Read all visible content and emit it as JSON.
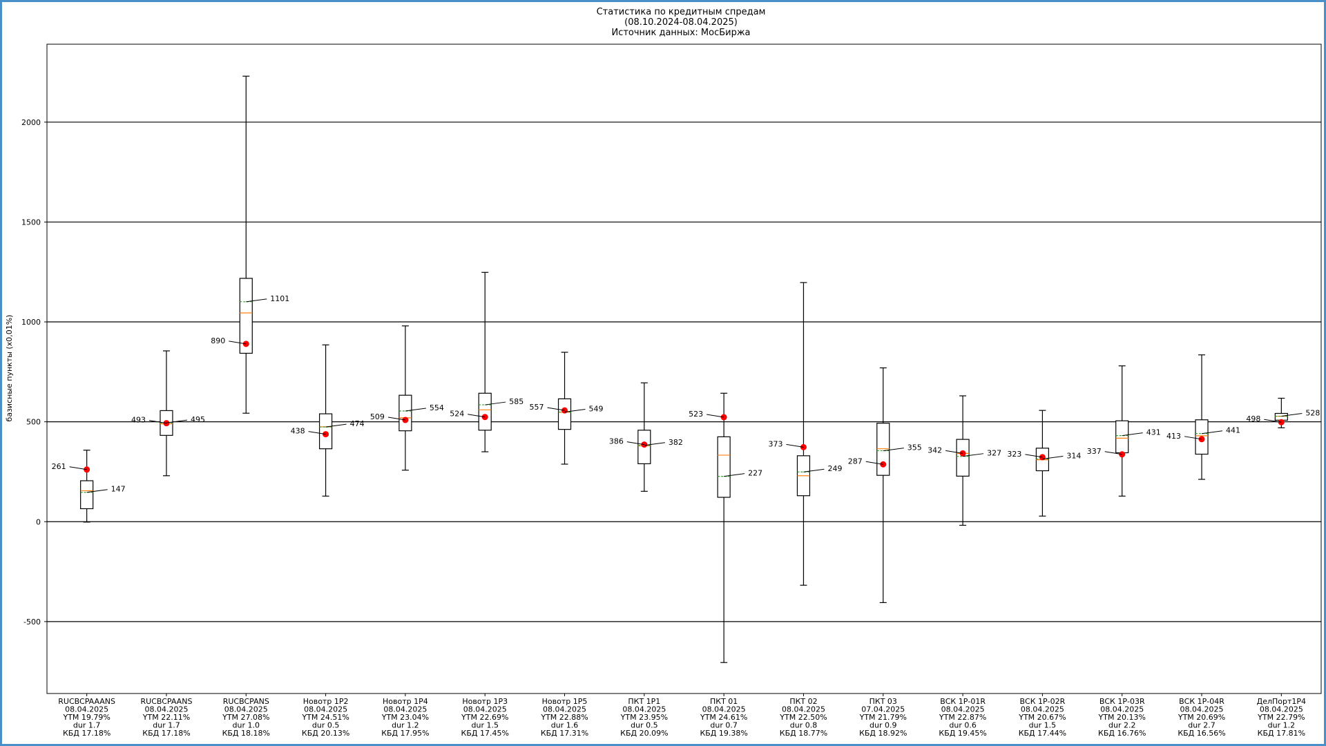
{
  "chart_data": {
    "type": "box",
    "title_lines": [
      "Статистика по кредитным спредам",
      "(08.10.2024-08.04.2025)",
      "Источник данных: МосБиржа"
    ],
    "xlabel": "",
    "ylabel": "базисные пункты (х0,01%)",
    "ylim": [
      -860,
      2390
    ],
    "yticks": [
      -500,
      0,
      500,
      1000,
      1500,
      2000
    ],
    "grid": "horizontal",
    "colors": {
      "box": "#000000",
      "median": "#ff7f0e",
      "mean": "#2ca02c",
      "current_point": "#ff0000",
      "grid": "#000000",
      "border": "#4a90c8"
    },
    "series": [
      {
        "label_lines": [
          "RUCBCPAAANS",
          "08.04.2025",
          "YTM 19.79%",
          "dur 1.7",
          "КБД 17.18%"
        ],
        "whisker_low": -2,
        "q1": 65,
        "median": 155,
        "q3": 205,
        "whisker_high": 358,
        "mean": 147,
        "current": 261,
        "mean_label": "147",
        "current_label": "261"
      },
      {
        "label_lines": [
          "RUCBCPAANS",
          "08.04.2025",
          "YTM 22.11%",
          "dur 1.7",
          "КБД 17.18%"
        ],
        "whisker_low": 230,
        "q1": 432,
        "median": 490,
        "q3": 556,
        "whisker_high": 855,
        "mean": 495,
        "current": 493,
        "mean_label": "495",
        "current_label": "493"
      },
      {
        "label_lines": [
          "RUCBCPANS",
          "08.04.2025",
          "YTM 27.08%",
          "dur 1.0",
          "КБД 18.18%"
        ],
        "whisker_low": 543,
        "q1": 843,
        "median": 1045,
        "q3": 1218,
        "whisker_high": 2230,
        "mean": 1101,
        "current": 890,
        "mean_label": "1101",
        "current_label": "890"
      },
      {
        "label_lines": [
          "Новотр 1Р2",
          "08.04.2025",
          "YTM 24.51%",
          "dur 0.5",
          "КБД 20.13%"
        ],
        "whisker_low": 128,
        "q1": 365,
        "median": 475,
        "q3": 540,
        "whisker_high": 885,
        "mean": 474,
        "current": 438,
        "mean_label": "474",
        "current_label": "438"
      },
      {
        "label_lines": [
          "Новотр 1Р4",
          "08.04.2025",
          "YTM 23.04%",
          "dur 1.2",
          "КБД 17.95%"
        ],
        "whisker_low": 258,
        "q1": 455,
        "median": 520,
        "q3": 633,
        "whisker_high": 980,
        "mean": 554,
        "current": 509,
        "mean_label": "554",
        "current_label": "509"
      },
      {
        "label_lines": [
          "Новотр 1Р3",
          "08.04.2025",
          "YTM 22.69%",
          "dur 1.5",
          "КБД 17.45%"
        ],
        "whisker_low": 350,
        "q1": 458,
        "median": 560,
        "q3": 643,
        "whisker_high": 1248,
        "mean": 585,
        "current": 524,
        "mean_label": "585",
        "current_label": "524"
      },
      {
        "label_lines": [
          "Новотр 1Р5",
          "08.04.2025",
          "YTM 22.88%",
          "dur 1.6",
          "КБД 17.31%"
        ],
        "whisker_low": 288,
        "q1": 462,
        "median": 548,
        "q3": 615,
        "whisker_high": 848,
        "mean": 549,
        "current": 557,
        "mean_label": "549",
        "current_label": "557"
      },
      {
        "label_lines": [
          "ПКТ 1Р1",
          "08.04.2025",
          "YTM 23.95%",
          "dur 0.5",
          "КБД 20.09%"
        ],
        "whisker_low": 152,
        "q1": 290,
        "median": 380,
        "q3": 458,
        "whisker_high": 695,
        "mean": 382,
        "current": 386,
        "mean_label": "382",
        "current_label": "386"
      },
      {
        "label_lines": [
          "ПКТ 01",
          "08.04.2025",
          "YTM 24.61%",
          "dur 0.7",
          "КБД 19.38%"
        ],
        "whisker_low": -705,
        "q1": 122,
        "median": 333,
        "q3": 425,
        "whisker_high": 643,
        "mean": 227,
        "current": 523,
        "mean_label": "227",
        "current_label": "523"
      },
      {
        "label_lines": [
          "ПКТ 02",
          "08.04.2025",
          "YTM 22.50%",
          "dur 0.8",
          "КБД 18.77%"
        ],
        "whisker_low": -318,
        "q1": 130,
        "median": 230,
        "q3": 330,
        "whisker_high": 1197,
        "mean": 249,
        "current": 373,
        "mean_label": "249",
        "current_label": "373"
      },
      {
        "label_lines": [
          "ПКТ 03",
          "07.04.2025",
          "YTM 21.79%",
          "dur 0.9",
          "КБД 18.92%"
        ],
        "whisker_low": -405,
        "q1": 232,
        "median": 365,
        "q3": 493,
        "whisker_high": 770,
        "mean": 355,
        "current": 287,
        "mean_label": "355",
        "current_label": "287"
      },
      {
        "label_lines": [
          "ВСК 1Р-01R",
          "08.04.2025",
          "YTM 22.87%",
          "dur 0.6",
          "КБД 19.45%"
        ],
        "whisker_low": -18,
        "q1": 228,
        "median": 342,
        "q3": 412,
        "whisker_high": 630,
        "mean": 327,
        "current": 342,
        "mean_label": "327",
        "current_label": "342"
      },
      {
        "label_lines": [
          "ВСК 1Р-02R",
          "08.04.2025",
          "YTM 20.67%",
          "dur 1.5",
          "КБД 17.44%"
        ],
        "whisker_low": 28,
        "q1": 255,
        "median": 310,
        "q3": 368,
        "whisker_high": 557,
        "mean": 314,
        "current": 323,
        "mean_label": "314",
        "current_label": "323"
      },
      {
        "label_lines": [
          "ВСК 1Р-03R",
          "08.04.2025",
          "YTM 20.13%",
          "dur 2.2",
          "КБД 16.76%"
        ],
        "whisker_low": 128,
        "q1": 345,
        "median": 418,
        "q3": 505,
        "whisker_high": 780,
        "mean": 431,
        "current": 337,
        "mean_label": "431",
        "current_label": "337"
      },
      {
        "label_lines": [
          "ВСК 1Р-04R",
          "08.04.2025",
          "YTM 20.69%",
          "dur 2.7",
          "КБД 16.56%"
        ],
        "whisker_low": 212,
        "q1": 338,
        "median": 430,
        "q3": 510,
        "whisker_high": 835,
        "mean": 441,
        "current": 413,
        "mean_label": "441",
        "current_label": "413"
      },
      {
        "label_lines": [
          "ДелПорт1Р4",
          "08.04.2025",
          "YTM 22.79%",
          "dur 1.2",
          "КБД 17.81%"
        ],
        "whisker_low": 470,
        "q1": 508,
        "median": 528,
        "q3": 542,
        "whisker_high": 618,
        "mean": 528,
        "current": 498,
        "mean_label": "528",
        "current_label": "498"
      }
    ]
  }
}
